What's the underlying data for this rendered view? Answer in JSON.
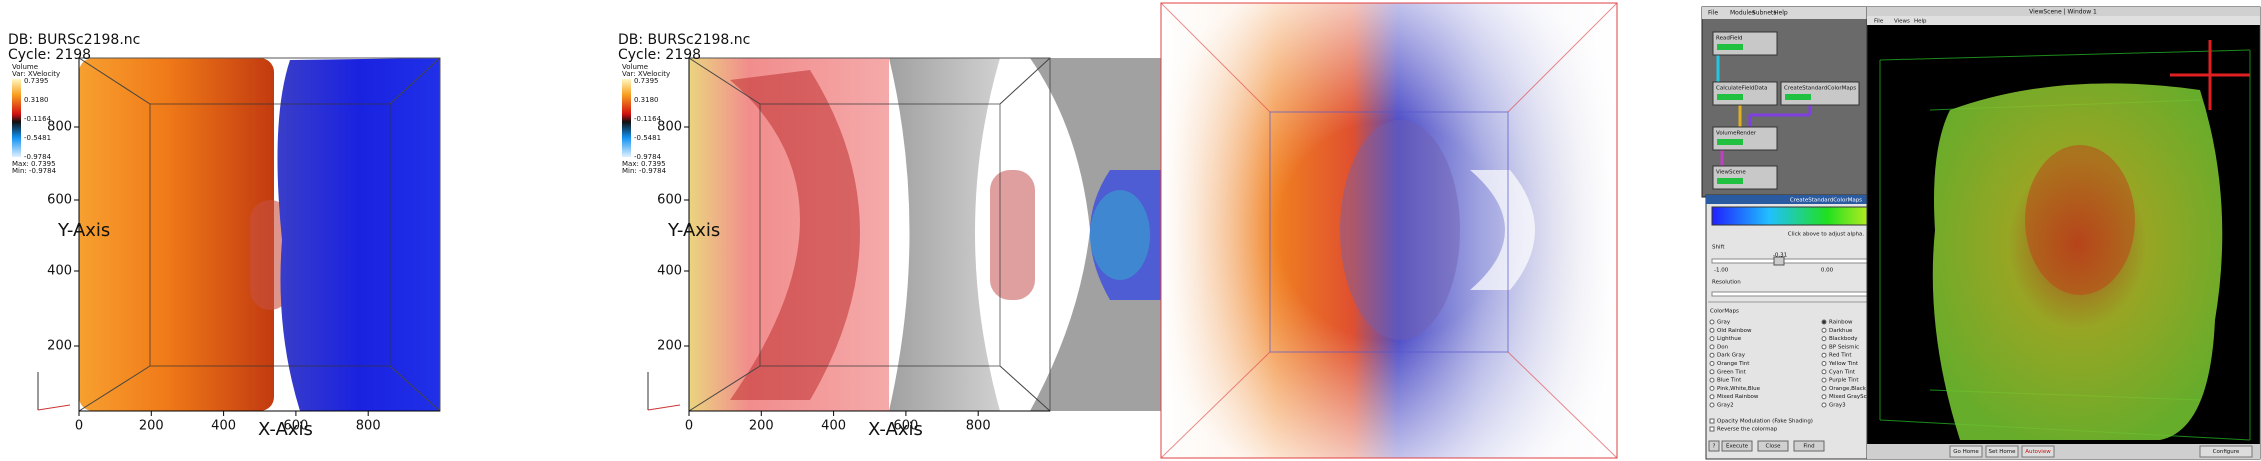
{
  "panels": [
    {
      "db": "DB: BURSc2198.nc",
      "cycle": "Cycle: 2198",
      "legend": {
        "title": "Volume",
        "var": "Var: XVelocity",
        "ticks": [
          "0.7395",
          "0.3180",
          "-0.1164",
          "-0.5481",
          "-0.9784"
        ],
        "max": "Max: 0.7395",
        "min": "Min: -0.9784"
      },
      "yticks": [
        "200",
        "400",
        "600",
        "800"
      ],
      "xticks": [
        "0",
        "200",
        "400",
        "600",
        "800"
      ],
      "ylabel": "Y-Axis",
      "xlabel": "X-Axis"
    },
    {
      "db": "DB: BURSc2198.nc",
      "cycle": "Cycle: 2198",
      "legend": {
        "title": "Volume",
        "var": "Var: XVelocity",
        "ticks": [
          "0.7395",
          "0.3180",
          "-0.1164",
          "-0.5481",
          "-0.9784"
        ],
        "max": "Max: 0.7395",
        "min": "Min: -0.9784"
      },
      "yticks": [
        "200",
        "400",
        "600",
        "800"
      ],
      "xticks": [
        "0",
        "200",
        "400",
        "600",
        "800"
      ],
      "ylabel": "Y-Axis",
      "xlabel": "X-Axis"
    }
  ],
  "gui": {
    "network": {
      "menu": [
        "File",
        "Modules",
        "Subnets",
        "Help"
      ],
      "modules": [
        "ReadField",
        "CalculateFieldData",
        "CreateStandardColorMaps",
        "VolumeRender",
        "ViewScene"
      ]
    },
    "colormap_dialog": {
      "title": "CreateStandardColorMaps",
      "hint": "Click above to adjust alpha.",
      "shift": "Shift",
      "shift_value": "-0.31",
      "scale": [
        "-1.00",
        "0.00",
        "1.00"
      ],
      "resolution": "Resolution",
      "resolution_value": "256",
      "colormaps_title": "ColorMaps",
      "colormaps": [
        "Gray",
        "Old Rainbow",
        "Lighthue",
        "Don",
        "Dark Gray",
        "Orange Tint",
        "Green Tint",
        "Blue Tint",
        "Pink,White,Blue",
        "Mixed Rainbow",
        "Gray2",
        "Rainbow",
        "Darkhue",
        "Blackbody",
        "BP Seismic",
        "Red Tint",
        "Yellow Tint",
        "Cyan Tint",
        "Purple Tint",
        "Orange,Black,Lime",
        "Mixed GrayScale",
        "Gray3"
      ],
      "options": [
        "Opacity Modulation (Fake Shading)",
        "Reverse the colormap"
      ],
      "buttons": [
        "?",
        "Execute",
        "Close",
        "Find"
      ]
    },
    "viewer": {
      "title": "ViewScene | Window 1",
      "menu": [
        "File",
        "Views",
        "Help"
      ],
      "buttons": [
        "Go Home",
        "Set Home",
        "Autoview",
        "Configure"
      ]
    }
  }
}
